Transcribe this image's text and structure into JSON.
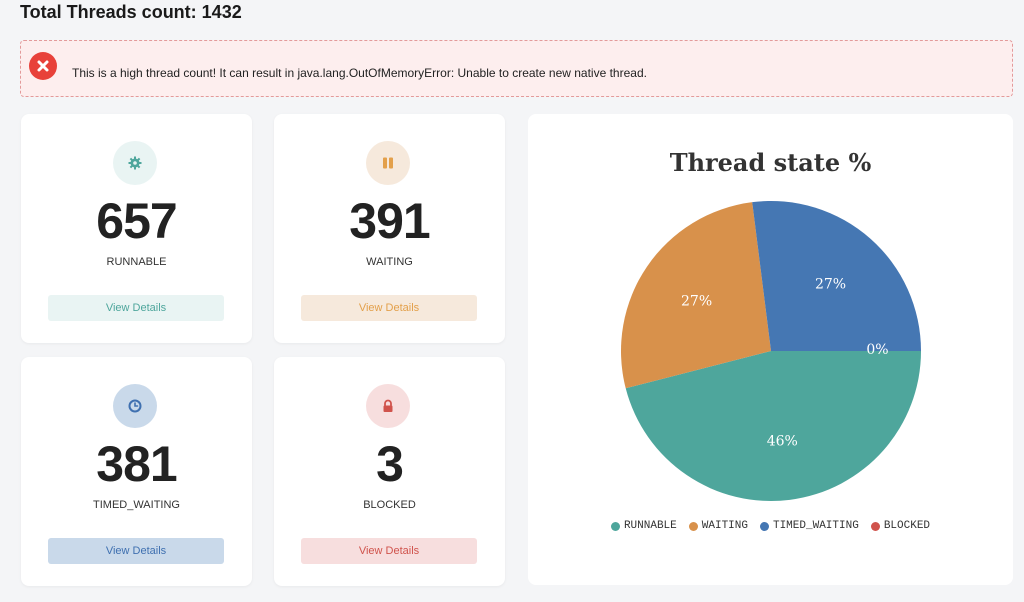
{
  "header": {
    "title": "Total Threads count: 1432"
  },
  "alert": {
    "message": "This is a high thread count! It can result in java.lang.OutOfMemoryError: Unable to create new native thread."
  },
  "cards": [
    {
      "count": "657",
      "state": "RUNNABLE",
      "button": "View Details",
      "icon": "gear-icon",
      "color": "#4ea69c",
      "bg": "#e9f4f3"
    },
    {
      "count": "391",
      "state": "WAITING",
      "button": "View Details",
      "icon": "pause-icon",
      "color": "#e3a04b",
      "bg": "#f6e9dc"
    },
    {
      "count": "381",
      "state": "TIMED_WAITING",
      "button": "View Details",
      "icon": "clock-icon",
      "color": "#3f70b0",
      "bg": "#c9d9ea"
    },
    {
      "count": "3",
      "state": "BLOCKED",
      "button": "View Details",
      "icon": "lock-icon",
      "color": "#d0534c",
      "bg": "#f7dede"
    }
  ],
  "chart_data": {
    "type": "pie",
    "title": "Thread state %",
    "slices": [
      {
        "label": "RUNNABLE",
        "value": 46,
        "display": "46%",
        "color": "#4ea69c"
      },
      {
        "label": "WAITING",
        "value": 27,
        "display": "27%",
        "color": "#d8914b"
      },
      {
        "label": "TIMED_WAITING",
        "value": 27,
        "display": "27%",
        "color": "#4577b3"
      },
      {
        "label": "BLOCKED",
        "value": 0,
        "display": "0%",
        "color": "#d0534c"
      }
    ],
    "legend_position": "bottom"
  }
}
